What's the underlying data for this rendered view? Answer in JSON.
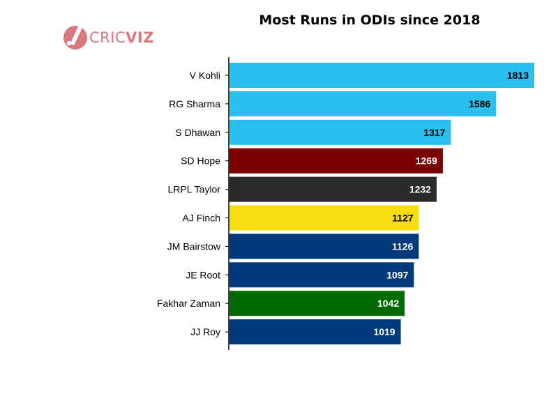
{
  "logo": {
    "text_a": "CRIC",
    "text_b": "VIZ",
    "color": "#d9787e"
  },
  "chart_data": {
    "type": "bar",
    "orientation": "horizontal",
    "title": "Most Runs in ODIs since 2018",
    "xlabel": "",
    "ylabel": "",
    "categories": [
      "V Kohli",
      "RG Sharma",
      "S Dhawan",
      "SD Hope",
      "LRPL Taylor",
      "AJ Finch",
      "JM Bairstow",
      "JE Root",
      "Fakhar Zaman",
      "JJ Roy"
    ],
    "values": [
      1813,
      1586,
      1317,
      1269,
      1232,
      1127,
      1126,
      1097,
      1042,
      1019
    ],
    "colors": [
      "#2bbff0",
      "#2bbff0",
      "#2bbff0",
      "#7a0000",
      "#2a2a2a",
      "#f7dc0f",
      "#013a7c",
      "#013a7c",
      "#016a01",
      "#013a7c"
    ],
    "label_colors": [
      "#000000",
      "#000000",
      "#000000",
      "#ffffff",
      "#ffffff",
      "#000000",
      "#ffffff",
      "#ffffff",
      "#ffffff",
      "#ffffff"
    ],
    "xlim": [
      0,
      1813
    ],
    "grid": false,
    "legend": "none"
  }
}
